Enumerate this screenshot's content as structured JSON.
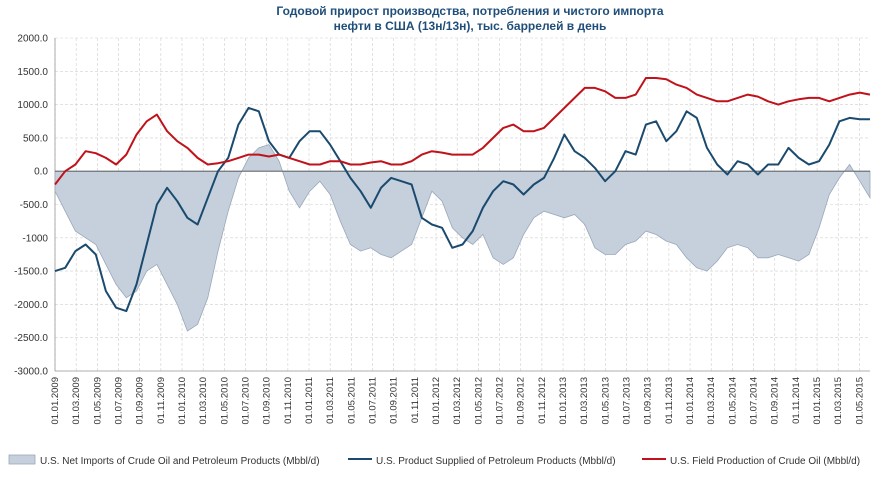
{
  "chart_data": {
    "type": "line",
    "title_lines": [
      "Годовой прирост производства, потребления и чистого импорта",
      "нефти в США (13н/13н), тыс. баррелей в день"
    ],
    "ylim": [
      -3000,
      2000
    ],
    "y_ticks": [
      "2000.0",
      "1500.0",
      "1000.0",
      "500.0",
      "0.0",
      "-500.0",
      "-1000",
      "-1500.0",
      "-2000.0",
      "-2500.0",
      "-3000.0"
    ],
    "y_tick_values": [
      2000,
      1500,
      1000,
      500,
      0,
      -500,
      -1000,
      -1500,
      -2000,
      -2500,
      -3000
    ],
    "x_ticks": [
      "01.01.2009",
      "01.03.2009",
      "01.05.2009",
      "01.07.2009",
      "01.09.2009",
      "01.11.2009",
      "01.01.2010",
      "01.03.2010",
      "01.05.2010",
      "01.07.2010",
      "01.09.2010",
      "01.11.2010",
      "01.01.2011",
      "01.03.2011",
      "01.05.2011",
      "01.07.2011",
      "01.09.2011",
      "01.11.2011",
      "01.01.2012",
      "01.03.2012",
      "01.05.2012",
      "01.07.2012",
      "01.09.2012",
      "01.11.2012",
      "01.01.2013",
      "01.03.2013",
      "01.05.2013",
      "01.07.2013",
      "01.09.2013",
      "01.11.2013",
      "01.01.2014",
      "01.03.2014",
      "01.05.2014",
      "01.07.2014",
      "01.09.2014",
      "01.11.2014",
      "01.01.2015",
      "01.03.2015",
      "01.05.2015"
    ],
    "grid": true,
    "legend_position": "bottom",
    "series": [
      {
        "name": "U.S. Net Imports of Crude Oil and Petroleum Products (Mbbl/d)",
        "kind": "area",
        "color": "#c5d0dc",
        "stroke": "#9aa8b8",
        "points": [
          [
            0,
            -300
          ],
          [
            1,
            -600
          ],
          [
            2,
            -900
          ],
          [
            3,
            -1000
          ],
          [
            4,
            -1100
          ],
          [
            5,
            -1400
          ],
          [
            6,
            -1700
          ],
          [
            7,
            -1900
          ],
          [
            8,
            -1800
          ],
          [
            9,
            -1500
          ],
          [
            10,
            -1400
          ],
          [
            11,
            -1700
          ],
          [
            12,
            -2000
          ],
          [
            13,
            -2400
          ],
          [
            14,
            -2300
          ],
          [
            15,
            -1900
          ],
          [
            16,
            -1200
          ],
          [
            17,
            -600
          ],
          [
            18,
            -100
          ],
          [
            19,
            200
          ],
          [
            20,
            350
          ],
          [
            21,
            400
          ],
          [
            22,
            150
          ],
          [
            23,
            -300
          ],
          [
            24,
            -550
          ],
          [
            25,
            -300
          ],
          [
            26,
            -150
          ],
          [
            27,
            -350
          ],
          [
            28,
            -750
          ],
          [
            29,
            -1100
          ],
          [
            30,
            -1200
          ],
          [
            31,
            -1150
          ],
          [
            32,
            -1250
          ],
          [
            33,
            -1300
          ],
          [
            34,
            -1200
          ],
          [
            35,
            -1100
          ],
          [
            36,
            -700
          ],
          [
            37,
            -300
          ],
          [
            38,
            -450
          ],
          [
            39,
            -850
          ],
          [
            40,
            -1000
          ],
          [
            41,
            -1100
          ],
          [
            42,
            -950
          ],
          [
            43,
            -1300
          ],
          [
            44,
            -1400
          ],
          [
            45,
            -1300
          ],
          [
            46,
            -950
          ],
          [
            47,
            -700
          ],
          [
            48,
            -600
          ],
          [
            49,
            -650
          ],
          [
            50,
            -700
          ],
          [
            51,
            -650
          ],
          [
            52,
            -800
          ],
          [
            53,
            -1150
          ],
          [
            54,
            -1250
          ],
          [
            55,
            -1250
          ],
          [
            56,
            -1100
          ],
          [
            57,
            -1050
          ],
          [
            58,
            -900
          ],
          [
            59,
            -950
          ],
          [
            60,
            -1050
          ],
          [
            61,
            -1100
          ],
          [
            62,
            -1300
          ],
          [
            63,
            -1450
          ],
          [
            64,
            -1500
          ],
          [
            65,
            -1350
          ],
          [
            66,
            -1150
          ],
          [
            67,
            -1100
          ],
          [
            68,
            -1150
          ],
          [
            69,
            -1300
          ],
          [
            70,
            -1300
          ],
          [
            71,
            -1250
          ],
          [
            72,
            -1300
          ],
          [
            73,
            -1350
          ],
          [
            74,
            -1250
          ],
          [
            75,
            -850
          ],
          [
            76,
            -350
          ],
          [
            77,
            -100
          ],
          [
            78,
            100
          ],
          [
            79,
            -150
          ],
          [
            80,
            -400
          ]
        ]
      },
      {
        "name": "U.S. Product Supplied of Petroleum Products (Mbbl/d)",
        "kind": "line",
        "color": "#1a4a6e",
        "points": [
          [
            0,
            -1500
          ],
          [
            1,
            -1450
          ],
          [
            2,
            -1200
          ],
          [
            3,
            -1100
          ],
          [
            4,
            -1250
          ],
          [
            5,
            -1800
          ],
          [
            6,
            -2050
          ],
          [
            7,
            -2100
          ],
          [
            8,
            -1700
          ],
          [
            9,
            -1100
          ],
          [
            10,
            -500
          ],
          [
            11,
            -250
          ],
          [
            12,
            -450
          ],
          [
            13,
            -700
          ],
          [
            14,
            -800
          ],
          [
            15,
            -400
          ],
          [
            16,
            0
          ],
          [
            17,
            200
          ],
          [
            18,
            700
          ],
          [
            19,
            950
          ],
          [
            20,
            900
          ],
          [
            21,
            450
          ],
          [
            22,
            250
          ],
          [
            23,
            200
          ],
          [
            24,
            450
          ],
          [
            25,
            600
          ],
          [
            26,
            600
          ],
          [
            27,
            400
          ],
          [
            28,
            150
          ],
          [
            29,
            -100
          ],
          [
            30,
            -300
          ],
          [
            31,
            -550
          ],
          [
            32,
            -250
          ],
          [
            33,
            -100
          ],
          [
            34,
            -150
          ],
          [
            35,
            -200
          ],
          [
            36,
            -700
          ],
          [
            37,
            -800
          ],
          [
            38,
            -850
          ],
          [
            39,
            -1150
          ],
          [
            40,
            -1100
          ],
          [
            41,
            -900
          ],
          [
            42,
            -550
          ],
          [
            43,
            -300
          ],
          [
            44,
            -150
          ],
          [
            45,
            -200
          ],
          [
            46,
            -350
          ],
          [
            47,
            -200
          ],
          [
            48,
            -100
          ],
          [
            49,
            200
          ],
          [
            50,
            550
          ],
          [
            51,
            300
          ],
          [
            52,
            200
          ],
          [
            53,
            50
          ],
          [
            54,
            -150
          ],
          [
            55,
            0
          ],
          [
            56,
            300
          ],
          [
            57,
            250
          ],
          [
            58,
            700
          ],
          [
            59,
            750
          ],
          [
            60,
            450
          ],
          [
            61,
            600
          ],
          [
            62,
            900
          ],
          [
            63,
            800
          ],
          [
            64,
            350
          ],
          [
            65,
            100
          ],
          [
            66,
            -50
          ],
          [
            67,
            150
          ],
          [
            68,
            100
          ],
          [
            69,
            -50
          ],
          [
            70,
            100
          ],
          [
            71,
            100
          ],
          [
            72,
            350
          ],
          [
            73,
            200
          ],
          [
            74,
            100
          ],
          [
            75,
            150
          ],
          [
            76,
            400
          ],
          [
            77,
            750
          ],
          [
            78,
            800
          ],
          [
            79,
            780
          ],
          [
            80,
            780
          ]
        ]
      },
      {
        "name": "U.S. Field Production of Crude Oil (Mbbl/d)",
        "kind": "line",
        "color": "#c0121a",
        "points": [
          [
            0,
            -200
          ],
          [
            1,
            0
          ],
          [
            2,
            100
          ],
          [
            3,
            300
          ],
          [
            4,
            270
          ],
          [
            5,
            200
          ],
          [
            6,
            100
          ],
          [
            7,
            250
          ],
          [
            8,
            550
          ],
          [
            9,
            750
          ],
          [
            10,
            850
          ],
          [
            11,
            600
          ],
          [
            12,
            450
          ],
          [
            13,
            350
          ],
          [
            14,
            200
          ],
          [
            15,
            100
          ],
          [
            16,
            120
          ],
          [
            17,
            150
          ],
          [
            18,
            200
          ],
          [
            19,
            250
          ],
          [
            20,
            250
          ],
          [
            21,
            220
          ],
          [
            22,
            250
          ],
          [
            23,
            200
          ],
          [
            24,
            150
          ],
          [
            25,
            100
          ],
          [
            26,
            100
          ],
          [
            27,
            150
          ],
          [
            28,
            150
          ],
          [
            29,
            100
          ],
          [
            30,
            100
          ],
          [
            31,
            130
          ],
          [
            32,
            150
          ],
          [
            33,
            100
          ],
          [
            34,
            100
          ],
          [
            35,
            150
          ],
          [
            36,
            250
          ],
          [
            37,
            300
          ],
          [
            38,
            280
          ],
          [
            39,
            250
          ],
          [
            40,
            250
          ],
          [
            41,
            250
          ],
          [
            42,
            350
          ],
          [
            43,
            500
          ],
          [
            44,
            650
          ],
          [
            45,
            700
          ],
          [
            46,
            600
          ],
          [
            47,
            600
          ],
          [
            48,
            650
          ],
          [
            49,
            800
          ],
          [
            50,
            950
          ],
          [
            51,
            1100
          ],
          [
            52,
            1250
          ],
          [
            53,
            1250
          ],
          [
            54,
            1200
          ],
          [
            55,
            1100
          ],
          [
            56,
            1100
          ],
          [
            57,
            1150
          ],
          [
            58,
            1400
          ],
          [
            59,
            1400
          ],
          [
            60,
            1380
          ],
          [
            61,
            1300
          ],
          [
            62,
            1250
          ],
          [
            63,
            1150
          ],
          [
            64,
            1100
          ],
          [
            65,
            1050
          ],
          [
            66,
            1050
          ],
          [
            67,
            1100
          ],
          [
            68,
            1150
          ],
          [
            69,
            1120
          ],
          [
            70,
            1050
          ],
          [
            71,
            1000
          ],
          [
            72,
            1050
          ],
          [
            73,
            1080
          ],
          [
            74,
            1100
          ],
          [
            75,
            1100
          ],
          [
            76,
            1050
          ],
          [
            77,
            1100
          ],
          [
            78,
            1150
          ],
          [
            79,
            1180
          ],
          [
            80,
            1150
          ]
        ]
      }
    ]
  }
}
